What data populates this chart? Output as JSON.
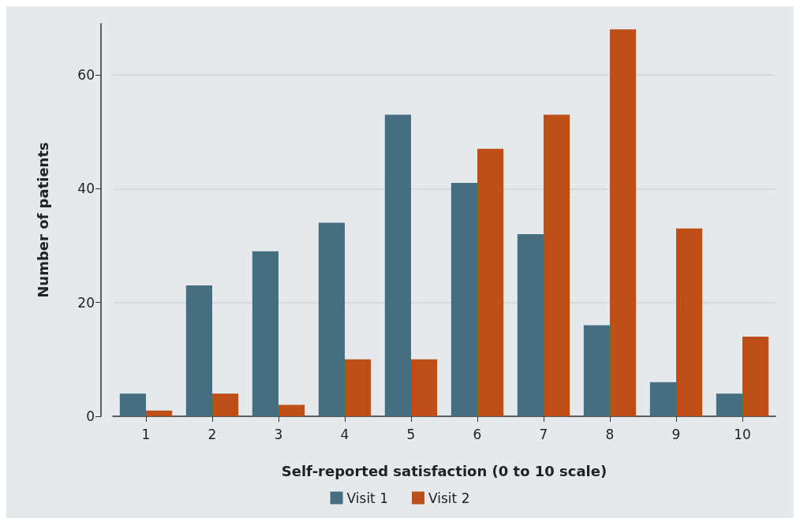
{
  "chart_data": {
    "type": "bar",
    "xlabel": "Self-reported satisfaction (0 to 10 scale)",
    "ylabel": "Number of patients",
    "categories": [
      "1",
      "2",
      "3",
      "4",
      "5",
      "6",
      "7",
      "8",
      "9",
      "10"
    ],
    "series": [
      {
        "name": "Visit 1",
        "color": "#466e80",
        "values": [
          4,
          23,
          29,
          34,
          53,
          41,
          32,
          16,
          6,
          4
        ]
      },
      {
        "name": "Visit 2",
        "color": "#bd4e18",
        "values": [
          1,
          4,
          2,
          10,
          10,
          47,
          53,
          68,
          33,
          14
        ]
      }
    ],
    "ylim": [
      0,
      69
    ],
    "yticks": [
      0,
      20,
      40,
      60
    ],
    "grid": "y",
    "legend": "bottom"
  }
}
